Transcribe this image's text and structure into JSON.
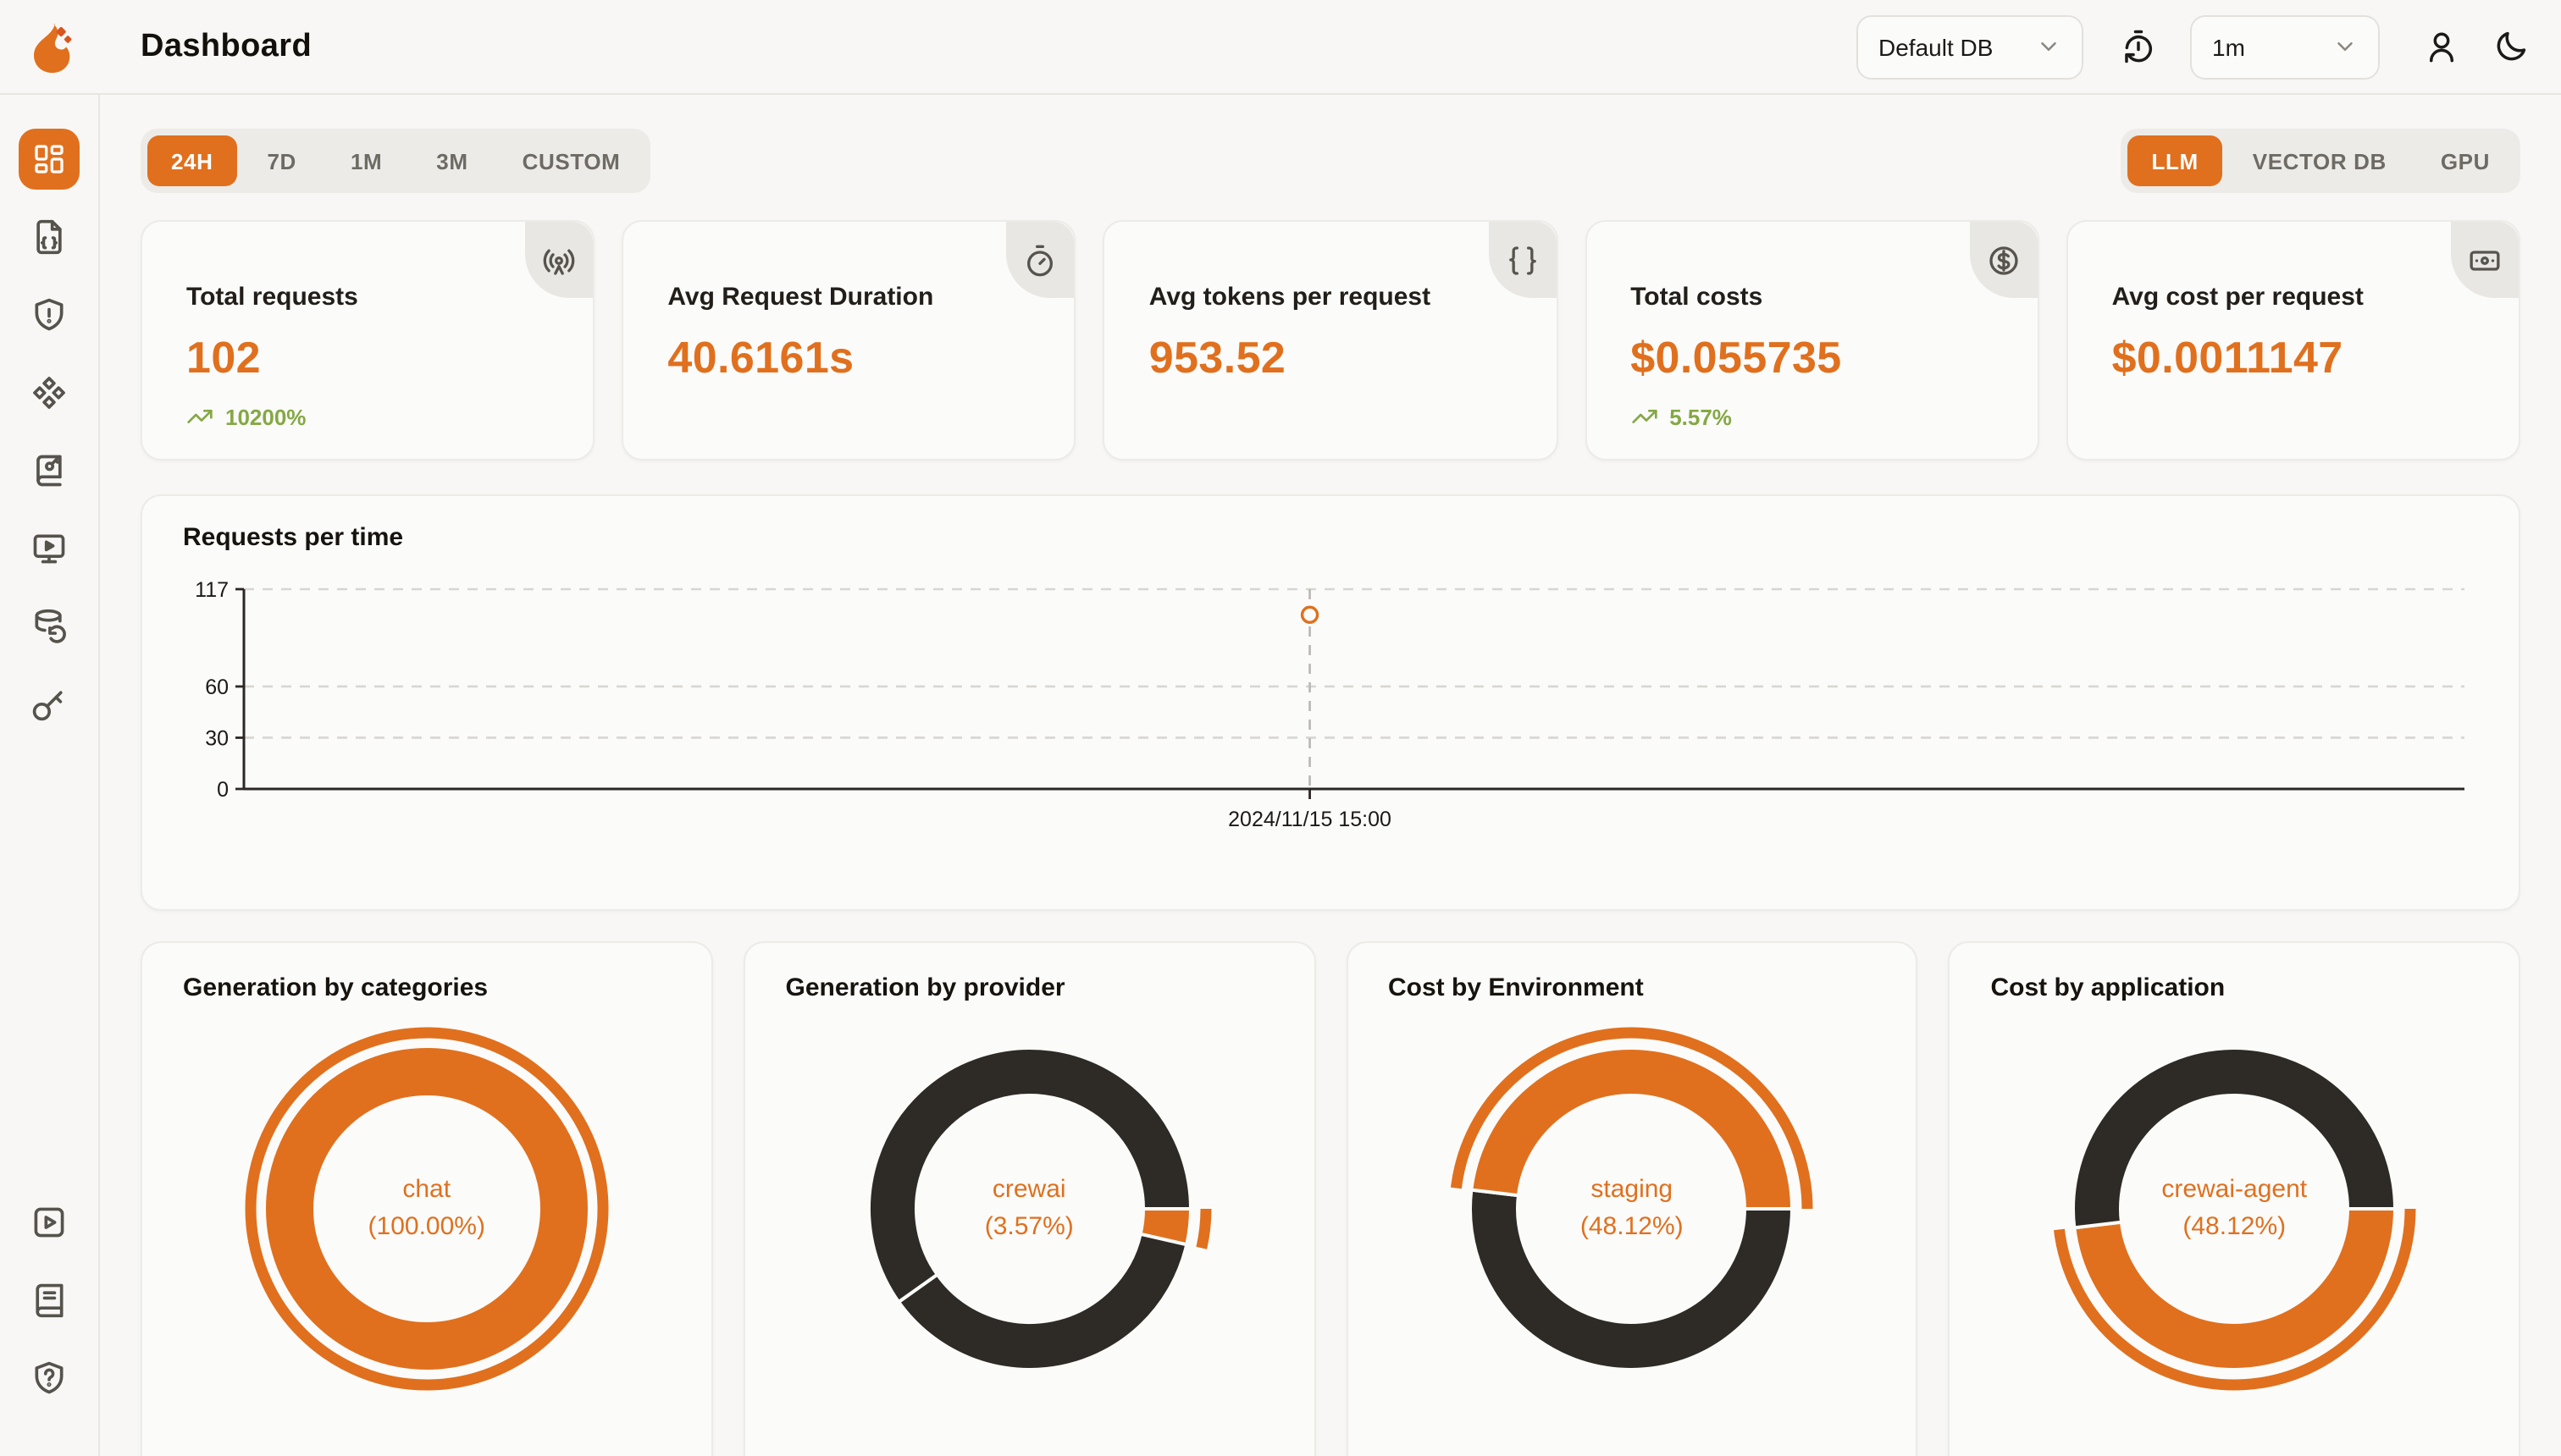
{
  "header": {
    "title": "Dashboard",
    "database_select": {
      "value": "Default DB"
    },
    "refresh_interval_select": {
      "value": "1m"
    }
  },
  "sidebar": {
    "items": [
      {
        "name": "dashboard",
        "icon": "layout-dashboard-icon",
        "active": true
      },
      {
        "name": "requests",
        "icon": "file-code-icon",
        "active": false
      },
      {
        "name": "exceptions",
        "icon": "shield-alert-icon",
        "active": false
      },
      {
        "name": "prompt-hub",
        "icon": "component-icon",
        "active": false
      },
      {
        "name": "vault",
        "icon": "book-key-icon",
        "active": false
      },
      {
        "name": "openground",
        "icon": "monitor-play-icon",
        "active": false
      },
      {
        "name": "databases",
        "icon": "database-backup-icon",
        "active": false
      },
      {
        "name": "api-keys",
        "icon": "key-icon",
        "active": false
      }
    ],
    "footer_items": [
      {
        "name": "getting-started",
        "icon": "square-play-icon"
      },
      {
        "name": "documentation",
        "icon": "book-icon"
      },
      {
        "name": "support",
        "icon": "shield-question-icon"
      }
    ]
  },
  "filters": {
    "time_ranges": [
      "24H",
      "7D",
      "1M",
      "3M",
      "CUSTOM"
    ],
    "active_time_range": "24H",
    "metric_tabs": [
      "LLM",
      "VECTOR DB",
      "GPU"
    ],
    "active_metric_tab": "LLM"
  },
  "stats": [
    {
      "title": "Total requests",
      "value": "102",
      "trend": "10200%",
      "icon": "radio-tower-icon"
    },
    {
      "title": "Avg Request Duration",
      "value": "40.6161s",
      "trend": null,
      "icon": "timer-icon"
    },
    {
      "title": "Avg tokens per request",
      "value": "953.52",
      "trend": null,
      "icon": "braces-icon"
    },
    {
      "title": "Total costs",
      "value": "$0.055735",
      "trend": "5.57%",
      "icon": "circle-dollar-icon"
    },
    {
      "title": "Avg cost per request",
      "value": "$0.0011147",
      "trend": null,
      "icon": "banknote-icon"
    }
  ],
  "chart_data": [
    {
      "type": "line",
      "title": "Requests per time",
      "x": [
        "2024/11/15 15:00"
      ],
      "series": [
        {
          "name": "requests",
          "values": [
            102
          ]
        }
      ],
      "ylim": [
        0,
        117
      ],
      "yticks": [
        0,
        30,
        60,
        117
      ],
      "grid": "dashed-horizontal",
      "point_x_fraction": 0.48,
      "legend": "off"
    },
    {
      "type": "pie",
      "title": "Generation by categories",
      "center_label": [
        "chat",
        "(100.00%)"
      ],
      "segments": [
        {
          "name": "chat",
          "pct": 100,
          "from_deg": 0,
          "to_deg": 360,
          "color": "accent",
          "active": true
        }
      ]
    },
    {
      "type": "pie",
      "title": "Generation by provider",
      "center_label": [
        "crewai",
        "(3.57%)"
      ],
      "segments": [
        {
          "name": "crewai",
          "pct": 3.57,
          "from_deg": 0,
          "to_deg": 12.85,
          "color": "accent",
          "active": true
        },
        {
          "name": "",
          "pct": 36.6,
          "from_deg": 12.85,
          "to_deg": 144.6,
          "color": "dark",
          "active": false
        },
        {
          "name": "",
          "pct": 59.83,
          "from_deg": 144.6,
          "to_deg": 360,
          "color": "dark",
          "active": false
        }
      ]
    },
    {
      "type": "pie",
      "title": "Cost by Environment",
      "center_label": [
        "staging",
        "(48.12%)"
      ],
      "segments": [
        {
          "name": "",
          "pct": 51.88,
          "from_deg": 0,
          "to_deg": 186.77,
          "color": "dark",
          "active": false
        },
        {
          "name": "staging",
          "pct": 48.12,
          "from_deg": 186.77,
          "to_deg": 360,
          "color": "accent",
          "active": true
        }
      ]
    },
    {
      "type": "pie",
      "title": "Cost by application",
      "center_label": [
        "crewai-agent",
        "(48.12%)"
      ],
      "segments": [
        {
          "name": "crewai-agent",
          "pct": 48.12,
          "from_deg": 0,
          "to_deg": 173.23,
          "color": "accent",
          "active": true
        },
        {
          "name": "",
          "pct": 51.88,
          "from_deg": 173.23,
          "to_deg": 360,
          "color": "dark",
          "active": false
        }
      ]
    }
  ],
  "colors": {
    "accent": "#E0701E",
    "dark": "#2E2A25",
    "green": "#85A844",
    "card_bg": "#FBFBFA"
  }
}
